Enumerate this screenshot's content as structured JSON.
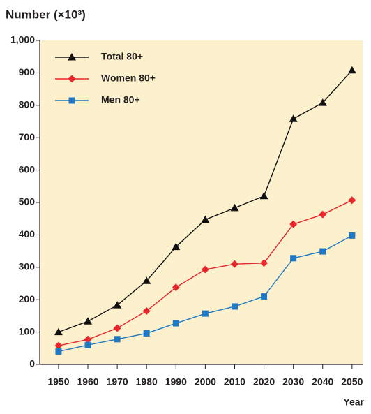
{
  "chart_data": {
    "type": "line",
    "title": "Number (×10³)",
    "x_label": "Year",
    "x": [
      1950,
      1960,
      1970,
      1980,
      1990,
      2000,
      2010,
      2020,
      2030,
      2040,
      2050
    ],
    "series": [
      {
        "name": "Total 80+",
        "color": "#111111",
        "marker": "triangle",
        "values": [
          100,
          133,
          183,
          258,
          363,
          447,
          483,
          520,
          758,
          808,
          908
        ]
      },
      {
        "name": "Women 80+",
        "color": "#e8262b",
        "marker": "diamond",
        "values": [
          58,
          77,
          112,
          165,
          238,
          293,
          310,
          313,
          433,
          463,
          507
        ]
      },
      {
        "name": "Men 80+",
        "color": "#1f78c1",
        "marker": "square",
        "values": [
          40,
          60,
          78,
          96,
          127,
          157,
          179,
          210,
          328,
          349,
          398
        ]
      }
    ],
    "xlim": [
      1943.6,
      2053.6
    ],
    "ylim": [
      0,
      1000
    ],
    "xticks": [
      1950,
      1960,
      1970,
      1980,
      1990,
      2000,
      2010,
      2020,
      2030,
      2040,
      2050
    ],
    "yticks": [
      0,
      100,
      200,
      300,
      400,
      500,
      600,
      700,
      800,
      900,
      {
        "value": 1000,
        "label": "1,000"
      }
    ],
    "legend": "upper left",
    "background": "#fdf0cd"
  }
}
